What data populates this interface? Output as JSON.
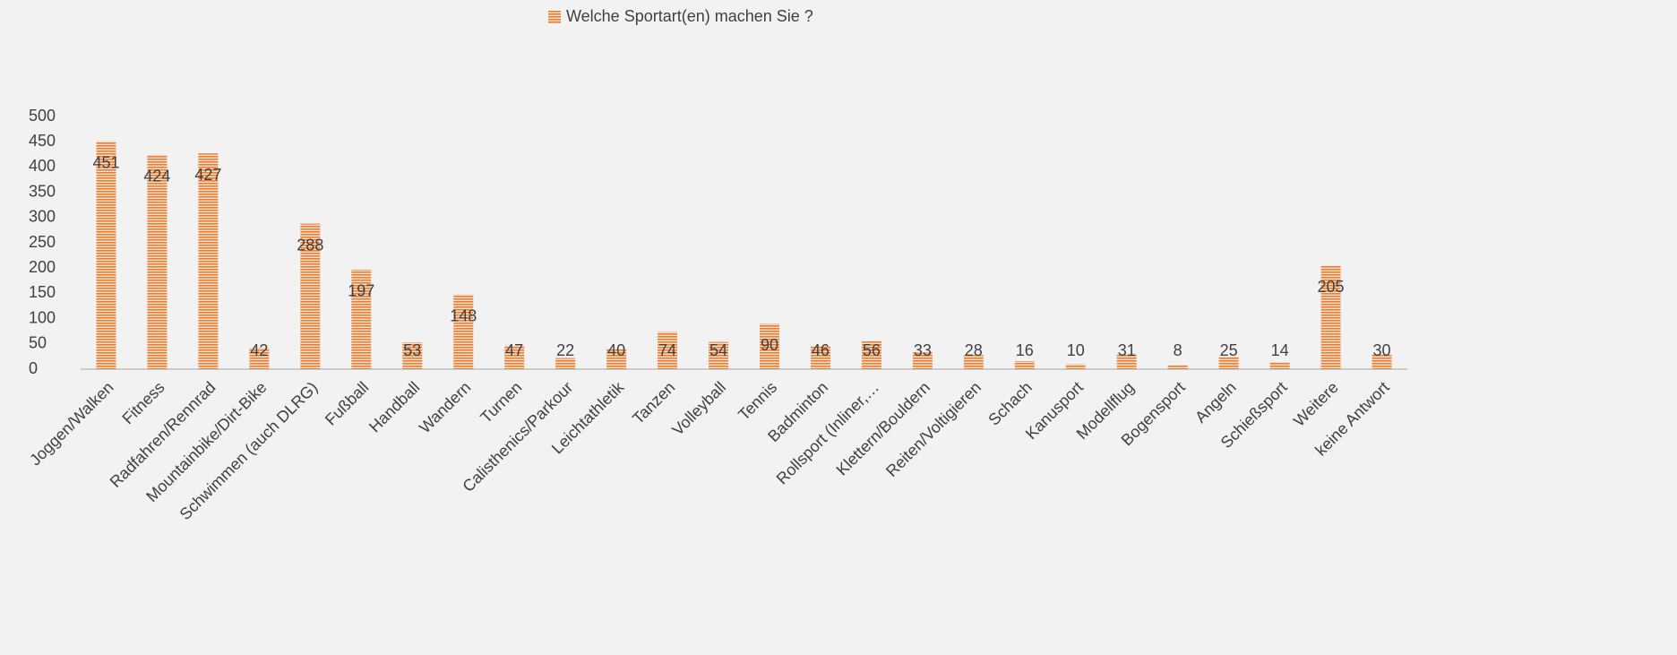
{
  "chart_data": {
    "type": "bar",
    "legend": "Welche Sportart(en) machen Sie ?",
    "categories": [
      "Joggen/Walken",
      "Fitness",
      "Radfahren/Rennrad",
      "Mountainbike/Dirt-Bike",
      "Schwimmen (auch DLRG)",
      "Fußball",
      "Handball",
      "Wandern",
      "Turnen",
      "Calisthenics/Parkour",
      "Leichtathletik",
      "Tanzen",
      "Volleyball",
      "Tennis",
      "Badminton",
      "Rollsport (Inliner,…",
      "Klettern/Bouldern",
      "Reiten/Voltigieren",
      "Schach",
      "Kanusport",
      "Modellflug",
      "Bogensport",
      "Angeln",
      "Schießsport",
      "Weitere",
      "keine Antwort"
    ],
    "values": [
      451,
      424,
      427,
      42,
      288,
      197,
      53,
      148,
      47,
      22,
      40,
      74,
      54,
      90,
      46,
      56,
      33,
      28,
      16,
      10,
      31,
      8,
      25,
      14,
      205,
      30
    ],
    "color": "#ed7d31",
    "ylim": [
      0,
      500
    ],
    "yticks": [
      0,
      50,
      100,
      150,
      200,
      250,
      300,
      350,
      400,
      450,
      500
    ],
    "grid": false
  }
}
